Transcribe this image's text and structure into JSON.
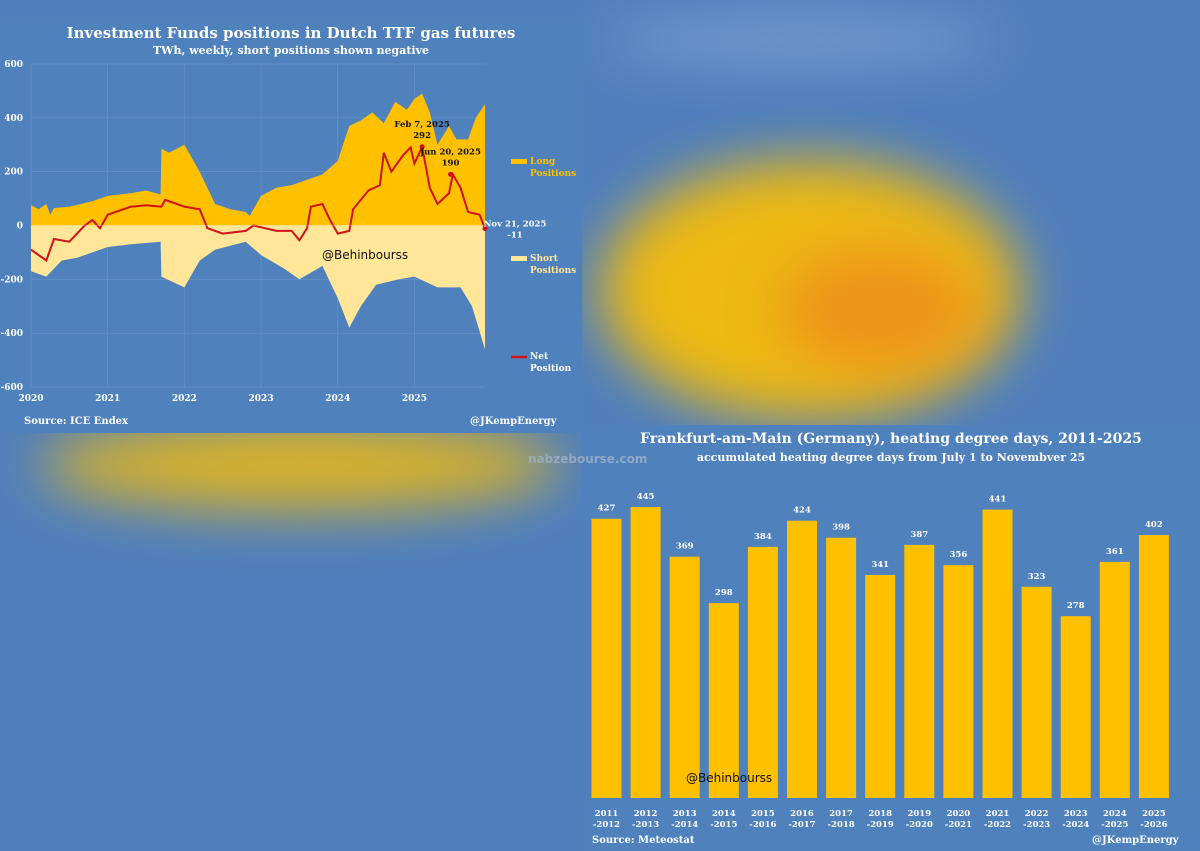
{
  "watermark": {
    "site_logo_text": "nabzebourse.com",
    "handle": "@Behinbourss"
  },
  "chart_data": [
    {
      "type": "area",
      "title": "Investment Funds positions in Dutch TTF gas futures",
      "subtitle": "TWh, weekly, short positions shown negative",
      "ylim": [
        -600,
        600
      ],
      "yticks": [
        600,
        400,
        200,
        0,
        -200,
        -400,
        -600
      ],
      "ytick_labels": [
        "600",
        "400",
        "200",
        "0",
        "-200",
        "-400",
        "-600"
      ],
      "xlim": [
        2020,
        2025.92
      ],
      "xticks": [
        2020,
        2021,
        2022,
        2023,
        2024,
        2025
      ],
      "xtick_labels": [
        "2020",
        "2021",
        "2022",
        "2023",
        "2024",
        "2025"
      ],
      "grid": true,
      "legend_position": "right",
      "series": [
        {
          "name": "Long Positions",
          "legend": [
            "Long",
            "Positions"
          ],
          "color": "#ffc000",
          "kind": "area",
          "x": [
            2020,
            2020.1,
            2020.2,
            2020.25,
            2020.3,
            2020.5,
            2020.8,
            2021,
            2021.3,
            2021.5,
            2021.69,
            2021.7,
            2021.8,
            2022,
            2022.2,
            2022.4,
            2022.6,
            2022.8,
            2022.85,
            2023,
            2023.2,
            2023.4,
            2023.6,
            2023.8,
            2024,
            2024.15,
            2024.3,
            2024.45,
            2024.6,
            2024.75,
            2024.9,
            2025,
            2025.1,
            2025.2,
            2025.3,
            2025.45,
            2025.55,
            2025.7,
            2025.8,
            2025.92
          ],
          "y": [
            75,
            60,
            80,
            40,
            65,
            70,
            90,
            110,
            120,
            130,
            115,
            285,
            270,
            300,
            200,
            80,
            60,
            50,
            35,
            110,
            140,
            150,
            170,
            190,
            240,
            370,
            390,
            420,
            380,
            460,
            430,
            470,
            490,
            420,
            300,
            370,
            320,
            320,
            400,
            450
          ]
        },
        {
          "name": "Short Positions",
          "legend": [
            "Short",
            "Positions"
          ],
          "color": "#ffe699",
          "kind": "area",
          "x": [
            2020,
            2020.2,
            2020.4,
            2020.6,
            2020.8,
            2021,
            2021.3,
            2021.69,
            2021.7,
            2022,
            2022.2,
            2022.4,
            2022.8,
            2023,
            2023.3,
            2023.5,
            2023.8,
            2024,
            2024.15,
            2024.3,
            2024.5,
            2024.8,
            2025,
            2025.3,
            2025.6,
            2025.75,
            2025.92
          ],
          "y": [
            -170,
            -190,
            -130,
            -120,
            -100,
            -80,
            -70,
            -60,
            -190,
            -230,
            -130,
            -90,
            -60,
            -110,
            -160,
            -200,
            -150,
            -270,
            -380,
            -300,
            -220,
            -200,
            -190,
            -230,
            -230,
            -300,
            -460
          ]
        },
        {
          "name": "Net Position",
          "legend": [
            "Net",
            "Position"
          ],
          "color": "#d0121b",
          "kind": "line",
          "x": [
            2020,
            2020.2,
            2020.3,
            2020.5,
            2020.7,
            2020.8,
            2020.9,
            2021,
            2021.3,
            2021.5,
            2021.7,
            2021.75,
            2022,
            2022.2,
            2022.3,
            2022.5,
            2022.8,
            2022.9,
            2023.2,
            2023.4,
            2023.5,
            2023.6,
            2023.65,
            2023.8,
            2023.9,
            2024,
            2024.15,
            2024.2,
            2024.4,
            2024.55,
            2024.6,
            2024.7,
            2024.85,
            2024.95,
            2025,
            2025.1,
            2025.2,
            2025.3,
            2025.45,
            2025.5,
            2025.6,
            2025.7,
            2025.85,
            2025.92
          ],
          "y": [
            -90,
            -130,
            -50,
            -60,
            0,
            20,
            -10,
            40,
            70,
            75,
            70,
            95,
            70,
            60,
            -10,
            -30,
            -20,
            0,
            -20,
            -20,
            -55,
            -10,
            70,
            80,
            20,
            -30,
            -20,
            60,
            130,
            150,
            270,
            200,
            260,
            290,
            230,
            292,
            140,
            80,
            120,
            190,
            140,
            50,
            40,
            -11
          ]
        }
      ],
      "annotations": [
        {
          "label": "Feb 7, 2025",
          "value_label": "292",
          "x": 2025.1,
          "y": 292
        },
        {
          "label": "Jun 20, 2025",
          "value_label": "190",
          "x": 2025.47,
          "y": 190
        },
        {
          "label": "Nov 21, 2025",
          "value_label": "-11",
          "x": 2025.92,
          "y": -11
        }
      ],
      "source": "Source: ICE Endex",
      "credit": "@JKempEnergy"
    },
    {
      "type": "bar",
      "title": "Frankfurt-am-Main (Germany), heating degree days, 2011-2025",
      "subtitle": "accumulated heating degree days from July 1 to Novembver 25",
      "categories": [
        [
          "2011",
          "-2012"
        ],
        [
          "2012",
          "-2013"
        ],
        [
          "2013",
          "-2014"
        ],
        [
          "2014",
          "-2015"
        ],
        [
          "2015",
          "-2016"
        ],
        [
          "2016",
          "-2017"
        ],
        [
          "2017",
          "-2018"
        ],
        [
          "2018",
          "-2019"
        ],
        [
          "2019",
          "-2020"
        ],
        [
          "2020",
          "-2021"
        ],
        [
          "2021",
          "-2022"
        ],
        [
          "2022",
          "-2023"
        ],
        [
          "2023",
          "-2024"
        ],
        [
          "2024",
          "-2025"
        ],
        [
          "2025",
          "-2026"
        ]
      ],
      "values": [
        427,
        445,
        369,
        298,
        384,
        424,
        398,
        341,
        387,
        356,
        441,
        323,
        278,
        361,
        402
      ],
      "color": "#ffc000",
      "ylim": [
        0,
        460
      ],
      "grid": false,
      "source": "Source: Meteostat",
      "credit": "@JKempEnergy"
    }
  ]
}
